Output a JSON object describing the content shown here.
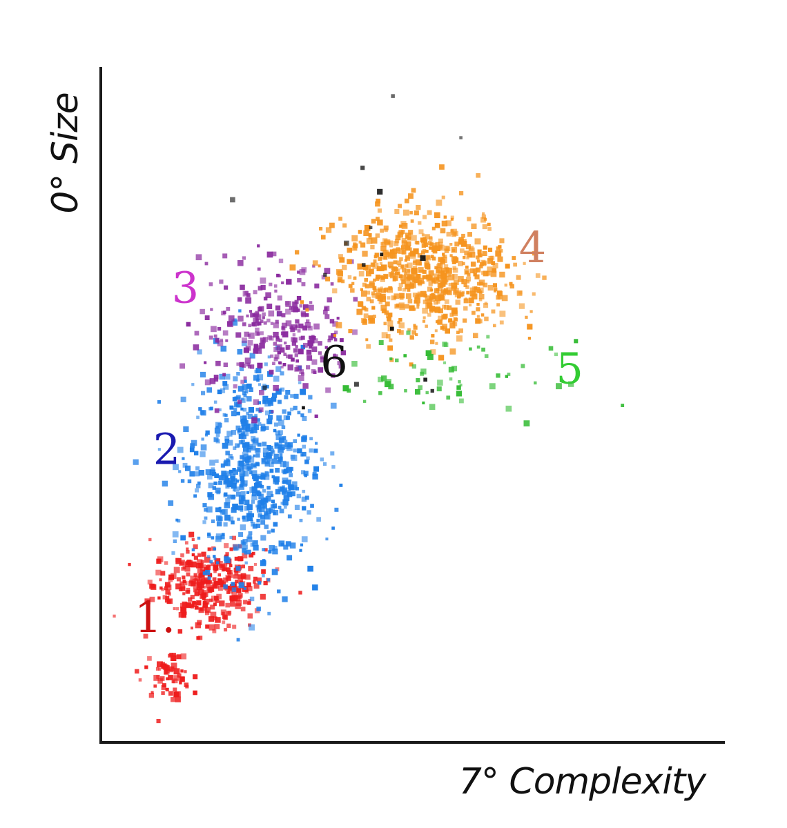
{
  "chart_data": {
    "type": "scatter",
    "title": "",
    "xlabel": "7° Complexity",
    "ylabel": "0° Size",
    "xlim": [
      0,
      100
    ],
    "ylim": [
      0,
      100
    ],
    "grid": false,
    "legend": "none",
    "point_style": "square",
    "series": [
      {
        "label": "1.",
        "color": "#ee1c1c",
        "label_color": "#cc1111",
        "label_pos": [
          5,
          16
        ],
        "clusters": [
          {
            "center": [
              17,
              23
            ],
            "spread": [
              4.5,
              3
            ],
            "count": 320
          },
          {
            "center": [
              10,
              10
            ],
            "spread": [
              2,
              1.8
            ],
            "count": 60
          }
        ]
      },
      {
        "label": "2",
        "color": "#1f7fe8",
        "label_color": "#1a1ab0",
        "label_pos": [
          8,
          41
        ],
        "clusters": [
          {
            "center": [
              24,
              40
            ],
            "spread": [
              5,
              8
            ],
            "count": 650
          }
        ]
      },
      {
        "label": "3",
        "color": "#8a2a9e",
        "label_color": "#cc33cc",
        "label_pos": [
          11,
          65
        ],
        "clusters": [
          {
            "center": [
              28,
              61
            ],
            "spread": [
              6,
              5
            ],
            "count": 280
          }
        ]
      },
      {
        "label": "4",
        "color": "#f5941f",
        "label_color": "#d08060",
        "label_pos": [
          67,
          71
        ],
        "clusters": [
          {
            "center": [
              52,
              69
            ],
            "spread": [
              7,
              4.5
            ],
            "count": 700
          }
        ]
      },
      {
        "label": "5",
        "color": "#33bb33",
        "label_color": "#33cc33",
        "label_pos": [
          73,
          53
        ],
        "clusters": [
          {
            "center": [
              55,
              54
            ],
            "spread": [
              9,
              2.5
            ],
            "count": 60
          }
        ]
      },
      {
        "label": "6",
        "color": "#111111",
        "label_color": "#111111",
        "label_pos": [
          35,
          54
        ],
        "clusters": [
          {
            "center": [
              44,
              72
            ],
            "spread": [
              10,
              14
            ],
            "count": 18
          }
        ]
      }
    ]
  }
}
